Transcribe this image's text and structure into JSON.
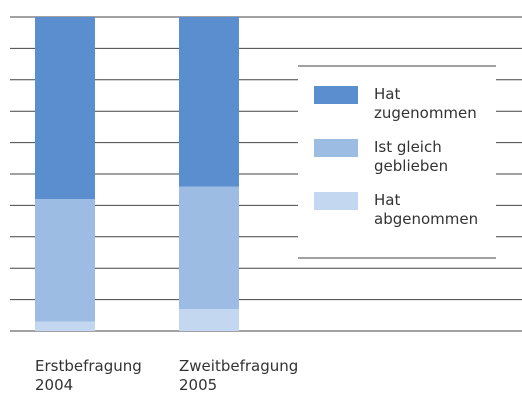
{
  "chart_data": {
    "type": "stacked_bar",
    "categories": [
      "Erstbefragung 2004",
      "Zweitbefragung 2005"
    ],
    "series": [
      {
        "name": "Hat abgenommen",
        "color": "#c3d8f0",
        "values": [
          3,
          7
        ]
      },
      {
        "name": "Ist gleich geblieben",
        "color": "#9cbce3",
        "values": [
          39,
          39
        ]
      },
      {
        "name": "Hat zugenommen",
        "color": "#5a8ecf",
        "values": [
          58,
          54
        ]
      }
    ],
    "ylim": [
      0,
      100
    ],
    "yticks": [
      0,
      10,
      20,
      30,
      40,
      50,
      60,
      70,
      80,
      90,
      100
    ],
    "grid": true
  }
}
